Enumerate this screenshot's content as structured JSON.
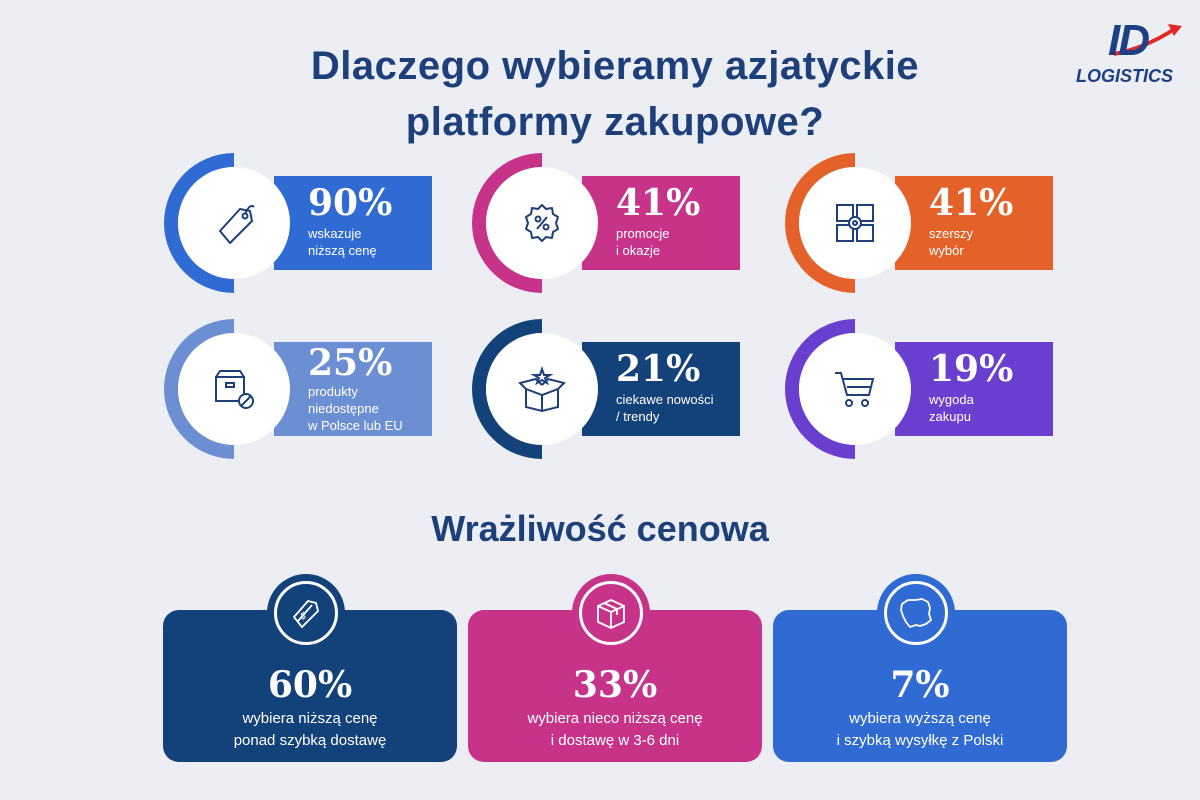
{
  "header": {
    "title": "Dlaczego wybieramy azjatyckie\nplatformy zakupowe?",
    "logo_main": "ID",
    "logo_sub": "LOGISTICS"
  },
  "reasons": [
    {
      "percent": "90%",
      "text": "wskazuje\nniższą cenę",
      "color": "#2f6bd3",
      "icon": "price-tag-icon"
    },
    {
      "percent": "41%",
      "text": "promocje\ni okazje",
      "color": "#c8338a",
      "icon": "discount-badge-icon"
    },
    {
      "percent": "41%",
      "text": "szerszy\nwybór",
      "color": "#e4622a",
      "icon": "boxes-grid-icon"
    },
    {
      "percent": "25%",
      "text": "produkty\nniedostępne\nw Polsce lub EU",
      "color": "#6b8fd2",
      "icon": "box-blocked-icon"
    },
    {
      "percent": "21%",
      "text": "ciekawe nowości\n/ trendy",
      "color": "#13427a",
      "icon": "open-box-icon"
    },
    {
      "percent": "19%",
      "text": "wygoda\nzakupu",
      "color": "#6a3fd0",
      "icon": "shopping-cart-icon"
    }
  ],
  "section_title": "Wrażliwość cenowa",
  "sensitivity": [
    {
      "percent": "60%",
      "text": "wybiera niższą cenę\nponad szybką dostawę",
      "color": "#13427a",
      "icon": "dollar-tags-icon"
    },
    {
      "percent": "33%",
      "text": "wybiera nieco niższą cenę\ni dostawę w 3-6 dni",
      "color": "#c8338a",
      "icon": "package-icon"
    },
    {
      "percent": "7%",
      "text": "wybiera wyższą cenę\ni szybką wysyłkę z Polski",
      "color": "#2f6bd3",
      "icon": "poland-map-icon"
    }
  ]
}
